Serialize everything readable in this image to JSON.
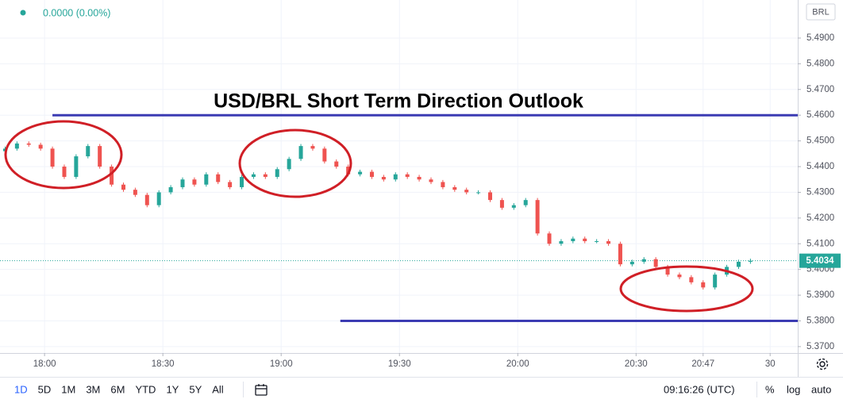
{
  "chart_data": {
    "type": "candlestick",
    "title": "USD/BRL Short Term Direction Outlook",
    "change_label": "0.0000 (0.00%)",
    "currency": "BRL",
    "last_price": 5.4034,
    "up_color": "#26a69a",
    "down_color": "#ef5350",
    "grid": true,
    "x": [
      1070,
      1073,
      1076,
      1079,
      1082,
      1085,
      1088,
      1091,
      1094,
      1097,
      1100,
      1103,
      1106,
      1109,
      1112,
      1115,
      1118,
      1121,
      1124,
      1127,
      1130,
      1133,
      1136,
      1139,
      1142,
      1145,
      1148,
      1151,
      1154,
      1157,
      1160,
      1163,
      1166,
      1169,
      1172,
      1175,
      1178,
      1181,
      1184,
      1187,
      1190,
      1193,
      1196,
      1199,
      1202,
      1205,
      1208,
      1211,
      1214,
      1217,
      1220,
      1223,
      1226,
      1229,
      1232,
      1235,
      1238,
      1241,
      1244,
      1247,
      1250,
      1253,
      1256,
      1259
    ],
    "open": [
      5.446,
      5.447,
      5.449,
      5.4485,
      5.447,
      5.44,
      5.436,
      5.444,
      5.448,
      5.44,
      5.433,
      5.431,
      5.429,
      5.425,
      5.43,
      5.432,
      5.435,
      5.433,
      5.437,
      5.434,
      5.432,
      5.436,
      5.437,
      5.436,
      5.439,
      5.443,
      5.448,
      5.447,
      5.442,
      5.44,
      5.437,
      5.438,
      5.436,
      5.435,
      5.437,
      5.436,
      5.435,
      5.434,
      5.432,
      5.431,
      5.43,
      5.43,
      5.427,
      5.424,
      5.425,
      5.427,
      5.414,
      5.41,
      5.411,
      5.412,
      5.411,
      5.411,
      5.41,
      5.402,
      5.403,
      5.404,
      5.401,
      5.398,
      5.397,
      5.395,
      5.393,
      5.398,
      5.401,
      5.403
    ],
    "high": [
      5.4478,
      5.4498,
      5.4498,
      5.4493,
      5.4478,
      5.4408,
      5.4448,
      5.4488,
      5.4488,
      5.4408,
      5.4338,
      5.4318,
      5.4298,
      5.4308,
      5.4328,
      5.4358,
      5.4358,
      5.4378,
      5.4378,
      5.4348,
      5.4368,
      5.4378,
      5.4378,
      5.4398,
      5.4438,
      5.4488,
      5.4488,
      5.4478,
      5.4428,
      5.4408,
      5.4388,
      5.4388,
      5.4368,
      5.4378,
      5.4378,
      5.4368,
      5.4358,
      5.4348,
      5.4328,
      5.4318,
      5.4308,
      5.4308,
      5.4278,
      5.4258,
      5.4278,
      5.4278,
      5.4148,
      5.4118,
      5.4128,
      5.4128,
      5.4118,
      5.4118,
      5.4108,
      5.4038,
      5.4048,
      5.4048,
      5.4018,
      5.3988,
      5.3978,
      5.3958,
      5.3988,
      5.4018,
      5.4038,
      5.4042
    ],
    "low": [
      5.4452,
      5.4462,
      5.4477,
      5.4462,
      5.4392,
      5.4352,
      5.4352,
      5.4432,
      5.4392,
      5.4322,
      5.4302,
      5.4282,
      5.4242,
      5.4242,
      5.4292,
      5.4312,
      5.4322,
      5.4322,
      5.4332,
      5.4312,
      5.4312,
      5.4352,
      5.4352,
      5.4352,
      5.4382,
      5.4422,
      5.4462,
      5.4412,
      5.4392,
      5.4362,
      5.4362,
      5.4352,
      5.4342,
      5.4342,
      5.4352,
      5.4342,
      5.4332,
      5.4312,
      5.4302,
      5.4292,
      5.4292,
      5.4262,
      5.4232,
      5.4232,
      5.4242,
      5.4132,
      5.4092,
      5.4092,
      5.4102,
      5.4102,
      5.4102,
      5.4092,
      5.4012,
      5.4012,
      5.4022,
      5.4002,
      5.3972,
      5.3962,
      5.3942,
      5.3922,
      5.3922,
      5.3972,
      5.4002,
      5.4022
    ],
    "close": [
      5.447,
      5.449,
      5.4485,
      5.447,
      5.44,
      5.436,
      5.444,
      5.448,
      5.44,
      5.433,
      5.431,
      5.429,
      5.425,
      5.43,
      5.432,
      5.435,
      5.433,
      5.437,
      5.434,
      5.432,
      5.436,
      5.437,
      5.436,
      5.439,
      5.443,
      5.448,
      5.447,
      5.442,
      5.44,
      5.437,
      5.438,
      5.436,
      5.435,
      5.437,
      5.436,
      5.435,
      5.434,
      5.432,
      5.431,
      5.43,
      5.43,
      5.427,
      5.424,
      5.425,
      5.427,
      5.414,
      5.41,
      5.411,
      5.412,
      5.411,
      5.411,
      5.41,
      5.402,
      5.403,
      5.404,
      5.401,
      5.398,
      5.397,
      5.395,
      5.393,
      5.398,
      5.401,
      5.403,
      5.4034
    ],
    "levels": [
      {
        "value": 5.46,
        "from": 1082,
        "color": "#3b3bb3"
      },
      {
        "value": 5.38,
        "from": 1155,
        "color": "#3b3bb3"
      }
    ],
    "xlim": [
      1068.7,
      1271
    ],
    "ylim": [
      5.3675,
      5.5048
    ],
    "xticks": [
      {
        "value": 1080,
        "label": "18:00"
      },
      {
        "value": 1110,
        "label": "18:30"
      },
      {
        "value": 1140,
        "label": "19:00"
      },
      {
        "value": 1170,
        "label": "19:30"
      },
      {
        "value": 1200,
        "label": "20:00"
      },
      {
        "value": 1230,
        "label": "20:30"
      },
      {
        "value": 1247,
        "label": "20:47"
      },
      {
        "value": 1264,
        "label": "30"
      }
    ],
    "yticks": [
      {
        "value": 5.37,
        "label": "5.3700"
      },
      {
        "value": 5.38,
        "label": "5.3800"
      },
      {
        "value": 5.39,
        "label": "5.3900"
      },
      {
        "value": 5.4,
        "label": "5.4000"
      },
      {
        "value": 5.41,
        "label": "5.4100"
      },
      {
        "value": 5.42,
        "label": "5.4200"
      },
      {
        "value": 5.43,
        "label": "5.4300"
      },
      {
        "value": 5.44,
        "label": "5.4400"
      },
      {
        "value": 5.45,
        "label": "5.4500"
      },
      {
        "value": 5.46,
        "label": "5.4600"
      },
      {
        "value": 5.47,
        "label": "5.4700"
      },
      {
        "value": 5.48,
        "label": "5.4800"
      },
      {
        "value": 5.49,
        "label": "5.4900"
      }
    ]
  },
  "toolbar": {
    "ranges": [
      "1D",
      "5D",
      "1M",
      "3M",
      "6M",
      "YTD",
      "1Y",
      "5Y",
      "All"
    ],
    "clock": "09:16:26 (UTC)",
    "options": [
      "%",
      "log",
      "auto"
    ]
  }
}
